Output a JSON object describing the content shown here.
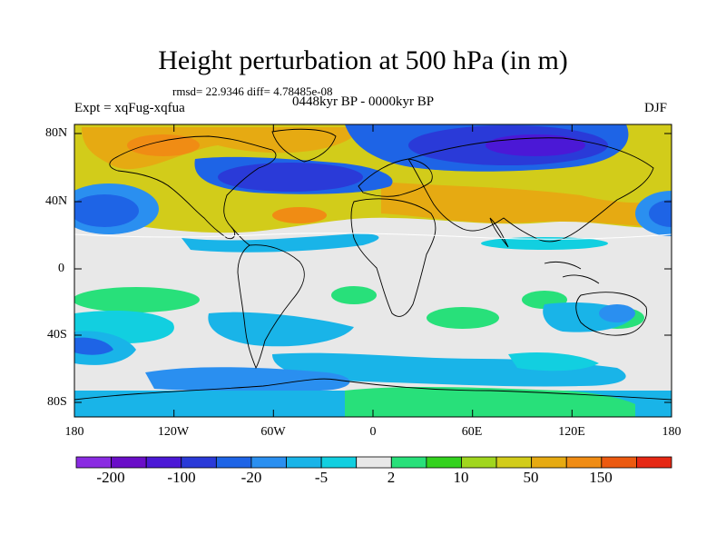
{
  "title": "Height perturbation at 500 hPa (in m)",
  "stats": "rmsd= 22.9346 diff= 4.78485e-08",
  "experiment": "Expt = xqFug-xqfua",
  "period": "0448kyr BP - 0000kyr BP",
  "season": "DJF",
  "lat_labels": [
    "80N",
    "40N",
    "0",
    "40S",
    "80S"
  ],
  "lon_labels": [
    "180",
    "120W",
    "60W",
    "0",
    "60E",
    "120E",
    "180"
  ],
  "colorbar": {
    "colors": [
      "#8a2be2",
      "#6a0ec8",
      "#4b18d6",
      "#2a3ad8",
      "#1e64e6",
      "#2a8ff0",
      "#19b4e8",
      "#12cfe0",
      "#e8e8e8",
      "#28e07a",
      "#33d21e",
      "#a0d61e",
      "#d2cc1a",
      "#e6aa12",
      "#f08c14",
      "#ec5a10",
      "#e62814"
    ],
    "labels": [
      "-200",
      "-100",
      "-20",
      "-5",
      "2",
      "10",
      "50",
      "150"
    ]
  }
}
